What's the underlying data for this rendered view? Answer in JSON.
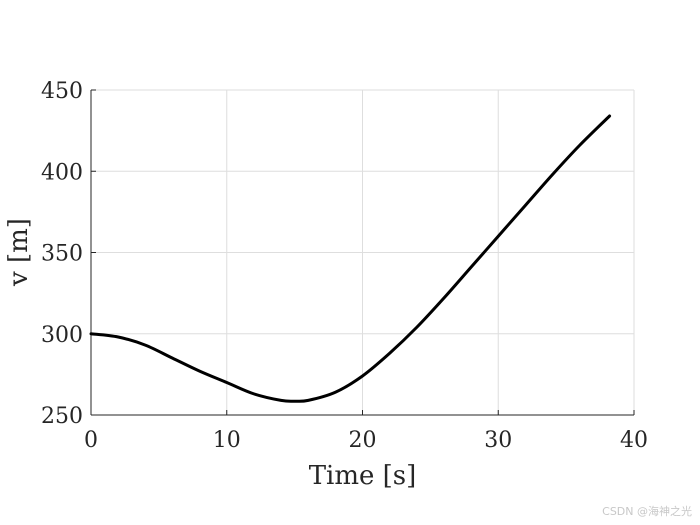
{
  "chart_data": {
    "type": "line",
    "xlabel": "Time [s]",
    "ylabel": "v [m]",
    "xlim": [
      0,
      40
    ],
    "ylim": [
      250,
      450
    ],
    "xticks": [
      0,
      10,
      20,
      30,
      40
    ],
    "yticks": [
      250,
      300,
      350,
      400,
      450
    ],
    "grid": true,
    "line_color": "#000000",
    "series": [
      {
        "x": [
          0,
          2,
          4,
          6,
          8,
          10,
          12,
          14,
          15,
          16,
          18,
          20,
          22,
          24,
          26,
          28,
          30,
          32,
          34,
          36,
          38.2
        ],
        "y": [
          300,
          298,
          293,
          285,
          277,
          270,
          263,
          259,
          258.5,
          259,
          264,
          274,
          288,
          304,
          322,
          341,
          360,
          379,
          398,
          416,
          434
        ]
      }
    ]
  },
  "watermark": "CSDN @海神之光"
}
